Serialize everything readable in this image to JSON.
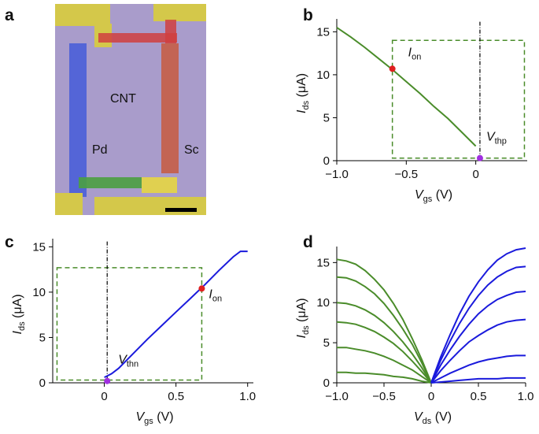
{
  "panel_labels": [
    "a",
    "b",
    "c",
    "d"
  ],
  "image": {
    "texts": [
      "CNT",
      "Pd",
      "Sc"
    ]
  },
  "chart_data": [
    {
      "type": "line",
      "series": [
        {
          "color": "#4a8c2a",
          "x": [
            -1,
            -0.9,
            -0.8,
            -0.7,
            -0.6,
            -0.5,
            -0.4,
            -0.3,
            -0.2,
            -0.1,
            0
          ],
          "values": [
            15.5,
            14.4,
            13.2,
            11.9,
            10.6,
            9.2,
            7.8,
            6.3,
            4.9,
            3.3,
            1.7
          ]
        }
      ],
      "xlim": [
        -1,
        0.37
      ],
      "ylim": [
        0,
        16.5
      ],
      "xticks": [
        {
          "value": -1,
          "label": "−1.0"
        },
        {
          "value": -0.5,
          "label": "−0.5"
        },
        0
      ],
      "yticks": [
        0,
        5,
        10,
        15
      ],
      "xlabel": [
        "V",
        "gs",
        " (V)"
      ],
      "ylabel": [
        "I",
        "ds",
        " (μA)"
      ],
      "box": {
        "x": [
          -0.6,
          0.35
        ],
        "y": [
          0.3,
          14
        ],
        "color": "#4a8c2a"
      },
      "vline": 0.03,
      "markers": [
        {
          "x": -0.6,
          "y": 10.7,
          "color": "#e02020",
          "label": [
            "I",
            "on"
          ]
        },
        {
          "x": 0.03,
          "y": 0.3,
          "color": "#a030e0",
          "label": [
            "V",
            "thp"
          ]
        }
      ]
    },
    {
      "type": "line",
      "series": [
        {
          "color": "#1a1adc",
          "x": [
            0,
            0.05,
            0.1,
            0.2,
            0.3,
            0.4,
            0.5,
            0.6,
            0.7,
            0.8,
            0.9,
            0.95,
            1.0
          ],
          "values": [
            0.6,
            1.0,
            1.6,
            3.2,
            4.8,
            6.3,
            7.8,
            9.3,
            10.8,
            12.4,
            13.9,
            14.5,
            14.5
          ]
        }
      ],
      "xlim": [
        -0.36,
        1.04
      ],
      "ylim": [
        0,
        15.9
      ],
      "xticks": [
        0,
        0.5,
        {
          "value": 1,
          "label": "1.0"
        }
      ],
      "yticks": [
        0,
        5,
        10,
        15
      ],
      "xlabel": [
        "V",
        "gs",
        " (V)"
      ],
      "ylabel": [
        "I",
        "ds",
        " (μA)"
      ],
      "box": {
        "x": [
          -0.33,
          0.68
        ],
        "y": [
          0.3,
          12.7
        ],
        "color": "#4a8c2a"
      },
      "vline": 0.02,
      "markers": [
        {
          "x": 0.68,
          "y": 10.4,
          "color": "#e02020",
          "label": [
            "I",
            "on"
          ]
        },
        {
          "x": 0.02,
          "y": 0.2,
          "color": "#a030e0",
          "label": [
            "V",
            "thn"
          ]
        }
      ]
    },
    {
      "type": "line",
      "series": [
        {
          "color": "#4a8c2a",
          "x": [
            -1,
            -0.9,
            -0.8,
            -0.7,
            -0.6,
            -0.5,
            -0.4,
            -0.3,
            -0.2,
            -0.1,
            0
          ],
          "values": [
            15.4,
            15.2,
            14.8,
            14.0,
            12.9,
            11.6,
            9.9,
            7.9,
            5.5,
            2.9,
            0
          ]
        },
        {
          "color": "#4a8c2a",
          "x": [
            -1,
            -0.9,
            -0.8,
            -0.7,
            -0.6,
            -0.5,
            -0.4,
            -0.3,
            -0.2,
            -0.1,
            0
          ],
          "values": [
            13.2,
            13.1,
            12.7,
            12.0,
            11.1,
            9.9,
            8.4,
            6.7,
            4.8,
            2.5,
            0
          ]
        },
        {
          "color": "#4a8c2a",
          "x": [
            -1,
            -0.9,
            -0.8,
            -0.7,
            -0.6,
            -0.5,
            -0.4,
            -0.3,
            -0.2,
            -0.1,
            0
          ],
          "values": [
            10,
            9.9,
            9.6,
            9.1,
            8.4,
            7.5,
            6.4,
            5.1,
            3.6,
            1.9,
            0
          ]
        },
        {
          "color": "#4a8c2a",
          "x": [
            -1,
            -0.9,
            -0.8,
            -0.7,
            -0.6,
            -0.5,
            -0.4,
            -0.3,
            -0.2,
            -0.1,
            0
          ],
          "values": [
            7.6,
            7.5,
            7.3,
            6.9,
            6.4,
            5.7,
            4.9,
            3.9,
            2.7,
            1.4,
            0
          ]
        },
        {
          "color": "#4a8c2a",
          "x": [
            -1,
            -0.9,
            -0.8,
            -0.7,
            -0.6,
            -0.5,
            -0.4,
            -0.3,
            -0.2,
            -0.1,
            0
          ],
          "values": [
            4.4,
            4.4,
            4.2,
            4.0,
            3.7,
            3.3,
            2.8,
            2.2,
            1.6,
            0.8,
            0
          ]
        },
        {
          "color": "#4a8c2a",
          "x": [
            -1,
            -0.9,
            -0.8,
            -0.7,
            -0.6,
            -0.5,
            -0.4,
            -0.3,
            -0.2,
            -0.1,
            0
          ],
          "values": [
            1.3,
            1.3,
            1.2,
            1.2,
            1.1,
            1.0,
            0.8,
            0.7,
            0.5,
            0.2,
            0
          ]
        },
        {
          "color": "#1a1adc",
          "x": [
            0,
            0.1,
            0.2,
            0.3,
            0.4,
            0.5,
            0.6,
            0.7,
            0.8,
            0.9,
            1
          ],
          "values": [
            0,
            3.2,
            6.0,
            8.6,
            10.8,
            12.6,
            14.1,
            15.3,
            16.1,
            16.6,
            16.8
          ]
        },
        {
          "color": "#1a1adc",
          "x": [
            0,
            0.1,
            0.2,
            0.3,
            0.4,
            0.5,
            0.6,
            0.7,
            0.8,
            0.9,
            1
          ],
          "values": [
            0,
            2.8,
            5.2,
            7.4,
            9.3,
            10.9,
            12.2,
            13.2,
            13.9,
            14.4,
            14.5
          ]
        },
        {
          "color": "#1a1adc",
          "x": [
            0,
            0.1,
            0.2,
            0.3,
            0.4,
            0.5,
            0.6,
            0.7,
            0.8,
            0.9,
            1
          ],
          "values": [
            0,
            2.2,
            4.1,
            5.8,
            7.3,
            8.6,
            9.6,
            10.4,
            10.9,
            11.3,
            11.4
          ]
        },
        {
          "color": "#1a1adc",
          "x": [
            0,
            0.1,
            0.2,
            0.3,
            0.4,
            0.5,
            0.6,
            0.7,
            0.8,
            0.9,
            1
          ],
          "values": [
            0,
            1.5,
            2.8,
            4.0,
            5.1,
            5.9,
            6.6,
            7.2,
            7.6,
            7.8,
            7.9
          ]
        },
        {
          "color": "#1a1adc",
          "x": [
            0,
            0.1,
            0.2,
            0.3,
            0.4,
            0.5,
            0.6,
            0.7,
            0.8,
            0.9,
            1
          ],
          "values": [
            0,
            0.6,
            1.2,
            1.7,
            2.2,
            2.6,
            2.9,
            3.1,
            3.3,
            3.4,
            3.4
          ]
        },
        {
          "color": "#1a1adc",
          "x": [
            0,
            0.1,
            0.2,
            0.3,
            0.4,
            0.5,
            0.6,
            0.7,
            0.8,
            0.9,
            1
          ],
          "values": [
            0,
            0.1,
            0.2,
            0.3,
            0.4,
            0.5,
            0.5,
            0.5,
            0.6,
            0.6,
            0.6
          ]
        }
      ],
      "xlim": [
        -1,
        1
      ],
      "ylim": [
        0,
        17
      ],
      "xticks": [
        {
          "value": -1,
          "label": "−1.0"
        },
        {
          "value": -0.5,
          "label": "−0.5"
        },
        0,
        0.5,
        {
          "value": 1,
          "label": "1.0"
        }
      ],
      "yticks": [
        0,
        5,
        10,
        15
      ],
      "xlabel": [
        "V",
        "ds",
        " (V)"
      ],
      "ylabel": [
        "I",
        "ds",
        " (μA)"
      ]
    }
  ]
}
